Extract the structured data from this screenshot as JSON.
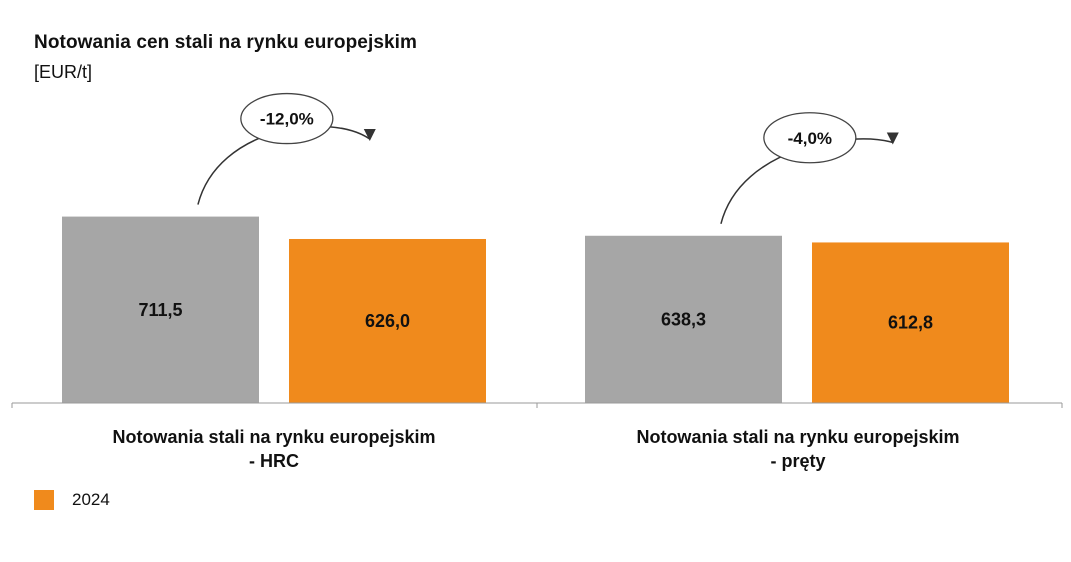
{
  "chart_data": {
    "type": "bar",
    "title": "Notowania cen stali na rynku europejskim",
    "unit": "[EUR/t]",
    "categories": [
      {
        "line1": "Notowania stali na rynku europejskim",
        "line2": "- HRC"
      },
      {
        "line1": "Notowania stali na rynku europejskim",
        "line2": "- pręty"
      }
    ],
    "series": [
      {
        "values": [
          711.5,
          638.3
        ],
        "value_labels": [
          "711,5",
          "638,3"
        ],
        "color": "#a6a6a6"
      },
      {
        "name": "2024",
        "values": [
          626.0,
          612.8
        ],
        "value_labels": [
          "626,0",
          "612,8"
        ],
        "color": "#f08a1c"
      }
    ],
    "annotations": [
      "-12,0%",
      "-4,0%"
    ],
    "legend": {
      "position": "bottom-left",
      "entries": [
        {
          "label": "2024",
          "color": "#f08a1c"
        }
      ]
    },
    "grid": false
  }
}
